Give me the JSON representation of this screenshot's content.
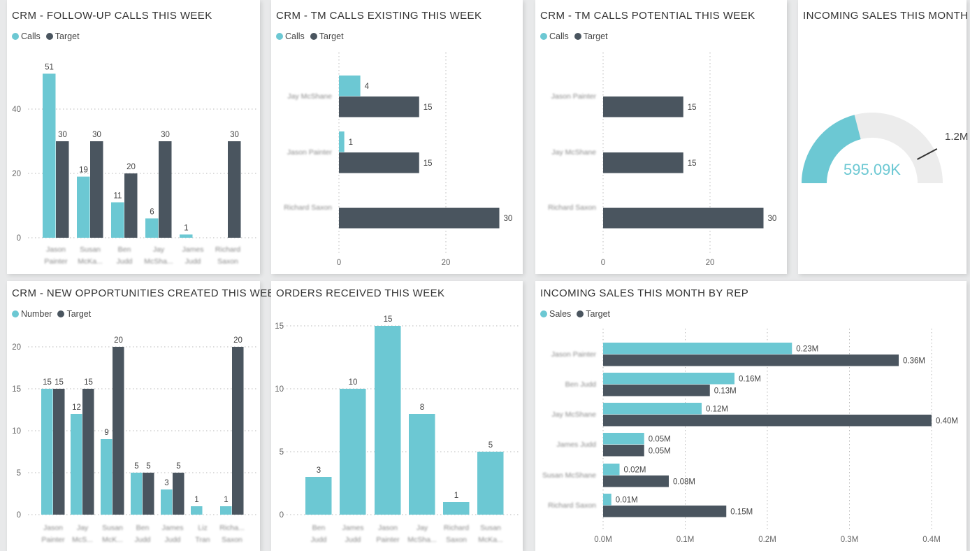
{
  "colors": {
    "primary": "#6cc8d3",
    "secondary": "#4a555f",
    "gauge_track": "#ececec",
    "grid": "#b8b8b8"
  },
  "chart_data": [
    {
      "title": "CRM - FOLLOW-UP CALLS THIS WEEK",
      "type": "bar",
      "orientation": "vertical",
      "categories": [
        "Jason Painter",
        "Susan McKa...",
        "Ben Judd",
        "Jay McSha...",
        "James Judd",
        "Richard Saxon"
      ],
      "series": [
        {
          "name": "Calls",
          "values": [
            51,
            19,
            11,
            6,
            1,
            null
          ]
        },
        {
          "name": "Target",
          "values": [
            30,
            30,
            20,
            30,
            null,
            30
          ]
        }
      ],
      "y_ticks": [
        0,
        20,
        40
      ],
      "grid": true,
      "legend": "top-left"
    },
    {
      "title": "CRM - TM CALLS EXISTING THIS WEEK",
      "type": "bar",
      "orientation": "horizontal",
      "categories": [
        "Jay McShane",
        "Jason Painter",
        "Richard Saxon"
      ],
      "series": [
        {
          "name": "Calls",
          "values": [
            4,
            1,
            null
          ]
        },
        {
          "name": "Target",
          "values": [
            15,
            15,
            30
          ]
        }
      ],
      "x_ticks": [
        0,
        20
      ],
      "grid": true,
      "legend": "top-left"
    },
    {
      "title": "CRM - TM CALLS POTENTIAL THIS WEEK",
      "type": "bar",
      "orientation": "horizontal",
      "categories": [
        "Jason Painter",
        "Jay McShane",
        "Richard Saxon"
      ],
      "series": [
        {
          "name": "Calls",
          "values": [
            null,
            null,
            null
          ]
        },
        {
          "name": "Target",
          "values": [
            15,
            15,
            30
          ]
        }
      ],
      "x_ticks": [
        0,
        20
      ],
      "grid": true,
      "legend": "top-left"
    },
    {
      "title": "INCOMING SALES THIS MONTH",
      "type": "gauge",
      "value": 595090,
      "value_label": "595.09K",
      "target": 1200000,
      "target_label": "1.2M"
    },
    {
      "title": "CRM - NEW OPPORTUNITIES CREATED THIS WEEK",
      "type": "bar",
      "orientation": "vertical",
      "categories": [
        "Jason Painter",
        "Jay McS...",
        "Susan McK...",
        "Ben Judd",
        "James Judd",
        "Liz Tran",
        "Richa... Saxon"
      ],
      "series": [
        {
          "name": "Number",
          "values": [
            15,
            12,
            9,
            5,
            3,
            1,
            1
          ]
        },
        {
          "name": "Target",
          "values": [
            15,
            15,
            20,
            5,
            5,
            null,
            20
          ]
        }
      ],
      "y_ticks": [
        0,
        5,
        10,
        15,
        20
      ],
      "grid": true,
      "legend": "top-left"
    },
    {
      "title": "ORDERS RECEIVED THIS WEEK",
      "type": "bar",
      "orientation": "vertical",
      "categories": [
        "Ben Judd",
        "James Judd",
        "Jason Painter",
        "Jay McSha...",
        "Richard Saxon",
        "Susan McKa..."
      ],
      "series": [
        {
          "values": [
            3,
            10,
            15,
            8,
            1,
            5
          ]
        }
      ],
      "y_ticks": [
        0,
        5,
        10,
        15
      ],
      "grid": true
    },
    {
      "title": "INCOMING SALES THIS MONTH BY REP",
      "type": "bar",
      "orientation": "horizontal",
      "unit": "M",
      "categories": [
        "Jason Painter",
        "Ben Judd",
        "Jay McShane",
        "James Judd",
        "Susan McShane",
        "Richard Saxon"
      ],
      "series": [
        {
          "name": "Sales",
          "values": [
            0.23,
            0.16,
            0.12,
            0.05,
            0.02,
            0.01
          ]
        },
        {
          "name": "Target",
          "values": [
            0.36,
            0.13,
            0.4,
            0.05,
            0.08,
            0.15
          ]
        }
      ],
      "x_ticks": [
        "0.0M",
        "0.1M",
        "0.2M",
        "0.3M",
        "0.4M"
      ],
      "grid": true,
      "legend": "top-left"
    }
  ]
}
